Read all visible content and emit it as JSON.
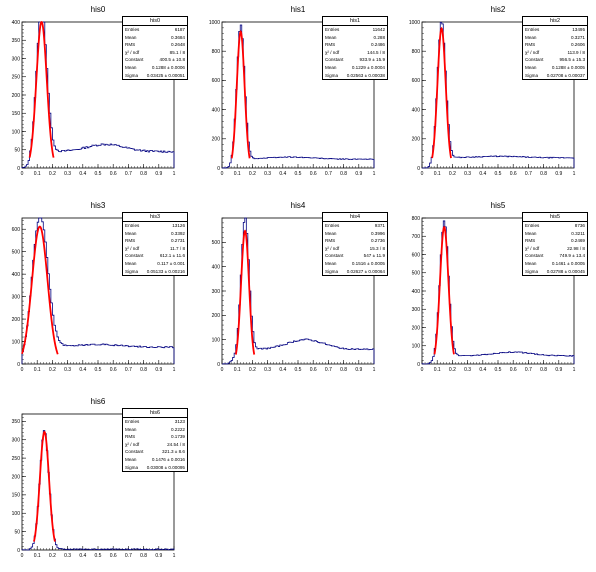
{
  "chart_data": [
    {
      "type": "histogram",
      "title": "his0",
      "ylim": [
        0,
        400
      ],
      "yticks": [
        0,
        50,
        100,
        150,
        200,
        250,
        300,
        350,
        400
      ],
      "xlim": [
        0,
        1
      ],
      "xticks": [
        0,
        0.1,
        0.2,
        0.3,
        0.4,
        0.5,
        0.6,
        0.7,
        0.8,
        0.9,
        1
      ],
      "fit": {
        "type": "gaussian",
        "constant": 400.5,
        "mean": 0.1288,
        "sigma": 0.03425
      },
      "tail": {
        "base": 45,
        "bump": 20,
        "bumpx": 0.55,
        "bumpw": 0.12
      },
      "stats": {
        "header": "his0",
        "rows": [
          [
            "Entries",
            "6187"
          ],
          [
            "Mean",
            "0.3684"
          ],
          [
            "RMS",
            "0.2648"
          ],
          [
            "χ² / ndf",
            "85.1 / 8"
          ],
          [
            "Constant",
            "400.5 ± 10.8"
          ],
          [
            "Mean",
            "0.1288 ± 0.0006"
          ],
          [
            "Sigma",
            "0.03425 ± 0.00051"
          ]
        ]
      }
    },
    {
      "type": "histogram",
      "title": "his1",
      "ylim": [
        0,
        1000
      ],
      "yticks": [
        0,
        200,
        400,
        600,
        800,
        1000
      ],
      "xlim": [
        0,
        1
      ],
      "xticks": [
        0,
        0.1,
        0.2,
        0.3,
        0.4,
        0.5,
        0.6,
        0.7,
        0.8,
        0.9,
        1
      ],
      "fit": {
        "type": "gaussian",
        "constant": 933.9,
        "mean": 0.1229,
        "sigma": 0.02563
      },
      "tail": {
        "base": 60,
        "bump": 15,
        "bumpx": 0.45,
        "bumpw": 0.15
      },
      "stats": {
        "header": "his1",
        "rows": [
          [
            "Entries",
            "11642"
          ],
          [
            "Mean",
            "0.288"
          ],
          [
            "RMS",
            "0.2486"
          ],
          [
            "χ² / ndf",
            "144.5 / 8"
          ],
          [
            "Constant",
            "933.9 ± 15.9"
          ],
          [
            "Mean",
            "0.1229 ± 0.0004"
          ],
          [
            "Sigma",
            "0.02563 ± 0.00038"
          ]
        ]
      }
    },
    {
      "type": "histogram",
      "title": "his2",
      "ylim": [
        0,
        1000
      ],
      "yticks": [
        0,
        200,
        400,
        600,
        800,
        1000
      ],
      "xlim": [
        0,
        1
      ],
      "xticks": [
        0,
        0.1,
        0.2,
        0.3,
        0.4,
        0.5,
        0.6,
        0.7,
        0.8,
        0.9,
        1
      ],
      "fit": {
        "type": "gaussian",
        "constant": 956.5,
        "mean": 0.1288,
        "sigma": 0.02708
      },
      "tail": {
        "base": 70,
        "bump": 10,
        "bumpx": 0.5,
        "bumpw": 0.15
      },
      "stats": {
        "header": "his2",
        "rows": [
          [
            "Entries",
            "13495"
          ],
          [
            "Mean",
            "0.3271"
          ],
          [
            "RMS",
            "0.2606"
          ],
          [
            "χ² / ndf",
            "113.9 / 8"
          ],
          [
            "Constant",
            "956.5 ± 15.3"
          ],
          [
            "Mean",
            "0.1288 ± 0.0005"
          ],
          [
            "Sigma",
            "0.02708 ± 0.00037"
          ]
        ]
      }
    },
    {
      "type": "histogram",
      "title": "his3",
      "ylim": [
        0,
        650
      ],
      "yticks": [
        0,
        100,
        200,
        300,
        400,
        500,
        600
      ],
      "xlim": [
        0,
        1
      ],
      "xticks": [
        0,
        0.1,
        0.2,
        0.3,
        0.4,
        0.5,
        0.6,
        0.7,
        0.8,
        0.9,
        1
      ],
      "fit": {
        "type": "gaussian",
        "constant": 612.1,
        "mean": 0.117,
        "sigma": 0.05133
      },
      "tail": {
        "base": 75,
        "bump": 12,
        "bumpx": 0.5,
        "bumpw": 0.15
      },
      "stats": {
        "header": "his3",
        "rows": [
          [
            "Entries",
            "13126"
          ],
          [
            "Mean",
            "0.3392"
          ],
          [
            "RMS",
            "0.2731"
          ],
          [
            "χ² / ndf",
            "11.7 / 8"
          ],
          [
            "Constant",
            "612.1 ± 11.6"
          ],
          [
            "Mean",
            "0.117 ± 0.001"
          ],
          [
            "Sigma",
            "0.05133 ± 0.00216"
          ]
        ]
      }
    },
    {
      "type": "histogram",
      "title": "his4",
      "ylim": [
        0,
        600
      ],
      "yticks": [
        0,
        100,
        200,
        300,
        400,
        500
      ],
      "xlim": [
        0,
        1
      ],
      "xticks": [
        0,
        0.1,
        0.2,
        0.3,
        0.4,
        0.5,
        0.6,
        0.7,
        0.8,
        0.9,
        1
      ],
      "fit": {
        "type": "gaussian",
        "constant": 547,
        "mean": 0.1516,
        "sigma": 0.02627
      },
      "tail": {
        "base": 60,
        "bump": 40,
        "bumpx": 0.55,
        "bumpw": 0.12
      },
      "stats": {
        "header": "his4",
        "rows": [
          [
            "Entries",
            "9371"
          ],
          [
            "Mean",
            "0.3996"
          ],
          [
            "RMS",
            "0.2736"
          ],
          [
            "χ² / ndf",
            "15.3 / 8"
          ],
          [
            "Constant",
            "547 ± 11.9"
          ],
          [
            "Mean",
            "0.1516 ± 0.0005"
          ],
          [
            "Sigma",
            "0.02627 ± 0.00064"
          ]
        ]
      }
    },
    {
      "type": "histogram",
      "title": "his5",
      "ylim": [
        0,
        800
      ],
      "yticks": [
        0,
        100,
        200,
        300,
        400,
        500,
        600,
        700,
        800
      ],
      "xlim": [
        0,
        1
      ],
      "xticks": [
        0,
        0.1,
        0.2,
        0.3,
        0.4,
        0.5,
        0.6,
        0.7,
        0.8,
        0.9,
        1
      ],
      "fit": {
        "type": "gaussian",
        "constant": 749.9,
        "mean": 0.1461,
        "sigma": 0.02788
      },
      "tail": {
        "base": 45,
        "bump": 20,
        "bumpx": 0.6,
        "bumpw": 0.12
      },
      "stats": {
        "header": "his5",
        "rows": [
          [
            "Entries",
            "8736"
          ],
          [
            "Mean",
            "0.3211"
          ],
          [
            "RMS",
            "0.2469"
          ],
          [
            "χ² / ndf",
            "22.98 / 8"
          ],
          [
            "Constant",
            "749.9 ± 13.4"
          ],
          [
            "Mean",
            "0.1461 ± 0.0005"
          ],
          [
            "Sigma",
            "0.02788 ± 0.00045"
          ]
        ]
      }
    },
    {
      "type": "histogram",
      "title": "his6",
      "ylim": [
        0,
        370
      ],
      "yticks": [
        0,
        50,
        100,
        150,
        200,
        250,
        300,
        350
      ],
      "xlim": [
        0,
        1
      ],
      "xticks": [
        0,
        0.1,
        0.2,
        0.3,
        0.4,
        0.5,
        0.6,
        0.7,
        0.8,
        0.9,
        1
      ],
      "fit": {
        "type": "gaussian",
        "constant": 321.3,
        "mean": 0.1476,
        "sigma": 0.03008
      },
      "tail": {
        "base": 2,
        "bump": 0,
        "bumpx": 0.5,
        "bumpw": 0.1
      },
      "stats": {
        "header": "his6",
        "rows": [
          [
            "Entries",
            "3123"
          ],
          [
            "Mean",
            "0.2222"
          ],
          [
            "RMS",
            "0.1739"
          ],
          [
            "χ² / ndf",
            "24.54 / 8"
          ],
          [
            "Constant",
            "321.3 ± 8.6"
          ],
          [
            "Mean",
            "0.1476 ± 0.0016"
          ],
          [
            "Sigma",
            "0.03008 ± 0.00095"
          ]
        ]
      }
    }
  ],
  "colors": {
    "hist": "#000080",
    "fit": "#ff0000",
    "frame": "#000000"
  }
}
